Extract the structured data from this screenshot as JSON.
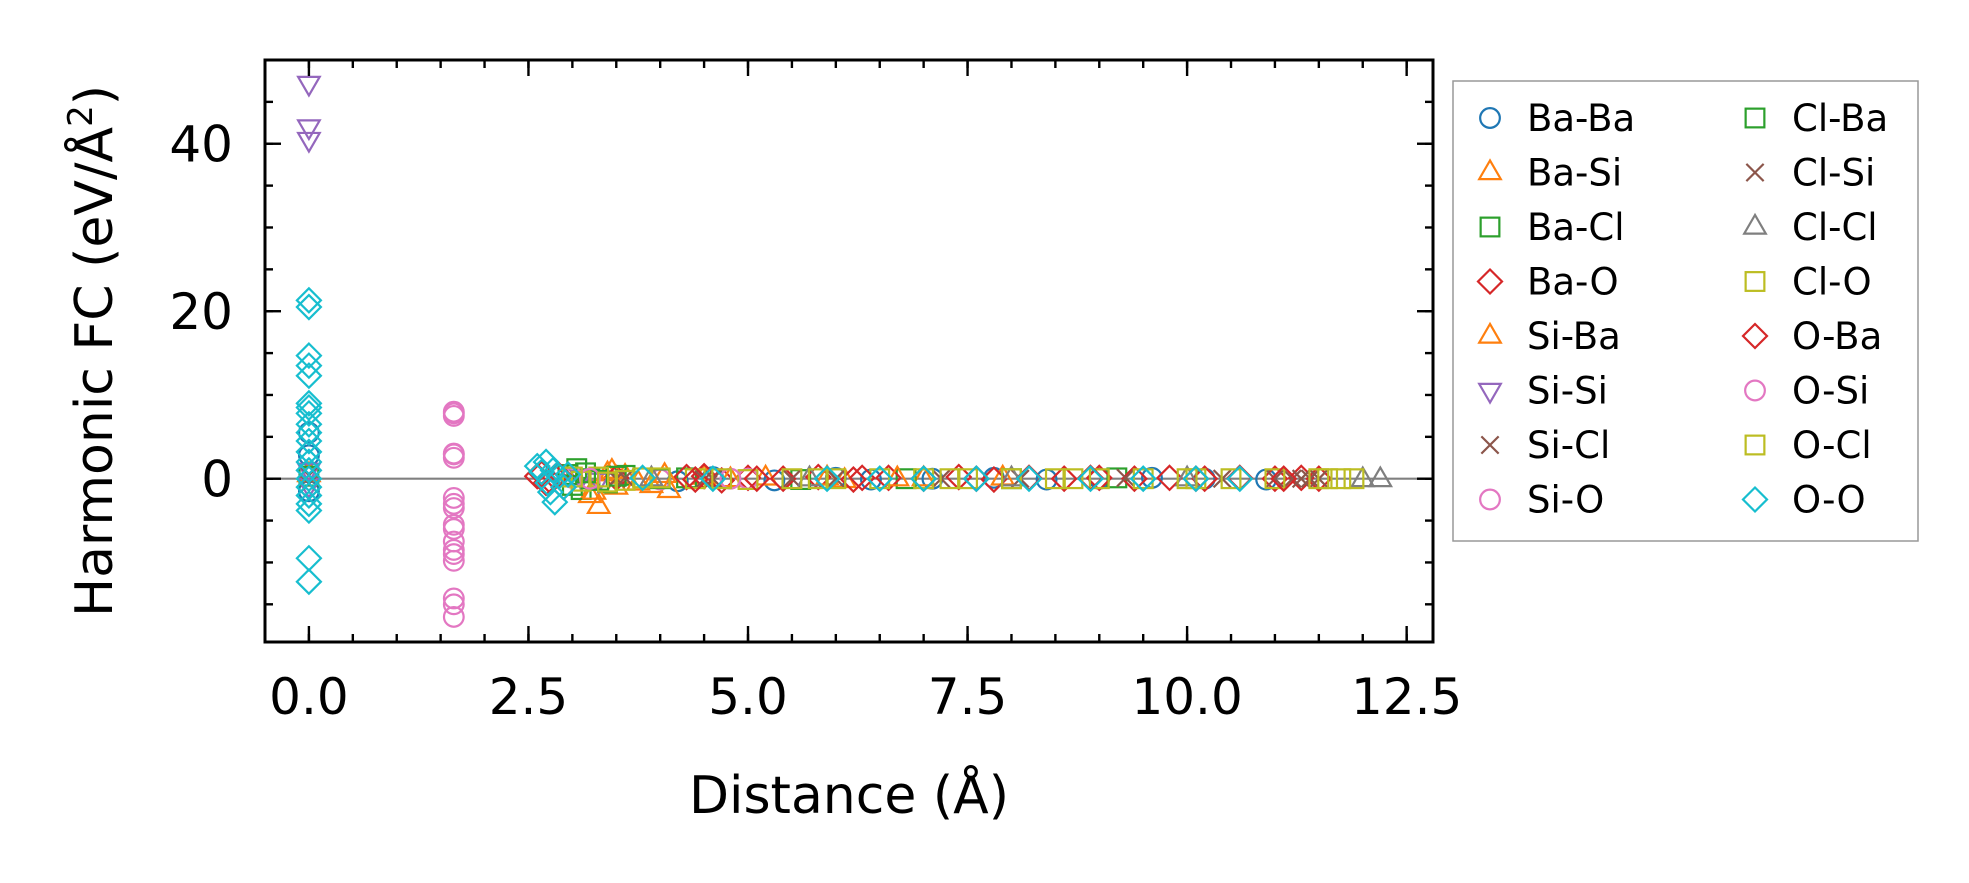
{
  "chart_data": {
    "type": "scatter",
    "title": "",
    "xlabel": "Distance (Å)",
    "ylabel_main": "Harmonic FC (eV/Å",
    "ylabel_sup": "2",
    "ylabel_end": ")",
    "xlim": [
      -0.5,
      12.8
    ],
    "ylim": [
      -19.5,
      50
    ],
    "x_ticks": [
      {
        "value": 0.0,
        "label": "0.0"
      },
      {
        "value": 2.5,
        "label": "2.5"
      },
      {
        "value": 5.0,
        "label": "5.0"
      },
      {
        "value": 7.5,
        "label": "7.5"
      },
      {
        "value": 10.0,
        "label": "10.0"
      },
      {
        "value": 12.5,
        "label": "12.5"
      }
    ],
    "y_ticks": [
      {
        "value": 0,
        "label": "0"
      },
      {
        "value": 20,
        "label": "20"
      },
      {
        "value": 40,
        "label": "40"
      }
    ],
    "zero_line": 0,
    "grid": false,
    "legend_position": "outside-right",
    "series": [
      {
        "name": "Ba-Ba",
        "marker": "circle",
        "color": "#1f77b4",
        "points": [
          [
            0,
            5.5
          ],
          [
            0,
            2.8
          ],
          [
            0,
            -1.5
          ],
          [
            4.2,
            -0.3
          ],
          [
            4.6,
            0.2
          ],
          [
            5.3,
            -0.2
          ],
          [
            6.0,
            0.1
          ],
          [
            6.4,
            -0.1
          ],
          [
            7.1,
            0.0
          ],
          [
            7.8,
            0.1
          ],
          [
            8.4,
            -0.1
          ],
          [
            9.0,
            0.0
          ],
          [
            9.6,
            0.1
          ],
          [
            10.2,
            0.0
          ],
          [
            10.9,
            -0.1
          ]
        ]
      },
      {
        "name": "Ba-Si",
        "marker": "triangle-up",
        "color": "#ff7f0e",
        "points": [
          [
            0,
            0.5
          ],
          [
            3.2,
            -2.0
          ],
          [
            3.3,
            -3.3
          ],
          [
            3.4,
            0.6
          ],
          [
            3.5,
            -1.0
          ],
          [
            3.6,
            0.3
          ],
          [
            3.9,
            -0.8
          ],
          [
            4.1,
            -1.4
          ],
          [
            4.5,
            0.2
          ],
          [
            5.2,
            0.1
          ],
          [
            6.1,
            -0.2
          ],
          [
            7.0,
            0.0
          ],
          [
            7.9,
            0.1
          ]
        ]
      },
      {
        "name": "Ba-Cl",
        "marker": "square",
        "color": "#2ca02c",
        "points": [
          [
            0,
            0.3
          ],
          [
            2.95,
            0.5
          ],
          [
            3.05,
            1.2
          ],
          [
            3.1,
            -1.3
          ],
          [
            3.2,
            0.0
          ],
          [
            3.4,
            -0.5
          ],
          [
            3.6,
            0.4
          ],
          [
            4.3,
            0.1
          ],
          [
            5.6,
            -0.1
          ],
          [
            6.8,
            0.0
          ],
          [
            8.0,
            0.0
          ],
          [
            9.2,
            0.1
          ]
        ]
      },
      {
        "name": "Ba-O",
        "marker": "diamond",
        "color": "#d62728",
        "points": [
          [
            2.6,
            0.3
          ],
          [
            2.7,
            -0.5
          ],
          [
            2.8,
            0.2
          ],
          [
            2.9,
            -1.0
          ],
          [
            3.5,
            0.1
          ],
          [
            4.3,
            0.2
          ],
          [
            4.5,
            0.3
          ],
          [
            4.7,
            -0.2
          ],
          [
            5.0,
            0.1
          ],
          [
            5.4,
            0.0
          ],
          [
            5.8,
            0.2
          ],
          [
            6.2,
            -0.1
          ],
          [
            6.6,
            0.1
          ],
          [
            7.0,
            0.0
          ],
          [
            7.4,
            0.2
          ],
          [
            7.8,
            -0.1
          ],
          [
            8.2,
            0.1
          ],
          [
            8.6,
            0.0
          ],
          [
            9.0,
            0.1
          ],
          [
            9.4,
            0.0
          ],
          [
            9.8,
            0.1
          ],
          [
            10.2,
            0.0
          ],
          [
            10.6,
            0.1
          ],
          [
            11.0,
            0.0
          ],
          [
            11.3,
            0.1
          ],
          [
            11.5,
            0.0
          ]
        ]
      },
      {
        "name": "Si-Ba",
        "marker": "triangle-up",
        "color": "#ff7f0e",
        "points": [
          [
            3.25,
            -1.6
          ],
          [
            3.45,
            0.9
          ],
          [
            3.75,
            -0.5
          ],
          [
            4.05,
            0.4
          ],
          [
            4.8,
            -0.1
          ],
          [
            5.9,
            0.1
          ],
          [
            6.7,
            0.0
          ]
        ]
      },
      {
        "name": "Si-Si",
        "marker": "triangle-down",
        "color": "#9467bd",
        "points": [
          [
            0,
            47.2
          ],
          [
            0,
            42.0
          ],
          [
            0,
            40.5
          ],
          [
            0,
            1.0
          ],
          [
            0,
            -0.8
          ],
          [
            3.1,
            0.2
          ],
          [
            3.3,
            -0.2
          ]
        ]
      },
      {
        "name": "Si-Cl",
        "marker": "x",
        "color": "#8c564b",
        "points": [
          [
            0,
            0.4
          ],
          [
            0,
            -0.6
          ],
          [
            3.5,
            0.0
          ],
          [
            4.5,
            -0.1
          ],
          [
            5.5,
            0.0
          ],
          [
            7.2,
            0.0
          ],
          [
            9.3,
            0.1
          ],
          [
            11.0,
            0.0
          ],
          [
            11.3,
            0.0
          ],
          [
            11.5,
            0.0
          ]
        ]
      },
      {
        "name": "Si-O",
        "marker": "circle",
        "color": "#e377c2",
        "points": [
          [
            1.65,
            7.8
          ],
          [
            1.65,
            7.5
          ],
          [
            1.65,
            3.0
          ],
          [
            1.65,
            2.5
          ],
          [
            1.65,
            -2.3
          ],
          [
            1.65,
            -3.5
          ],
          [
            1.65,
            -5.5
          ],
          [
            1.65,
            -7.5
          ],
          [
            1.65,
            -8.5
          ],
          [
            1.65,
            -9.8
          ],
          [
            1.65,
            -14.3
          ],
          [
            1.65,
            -16.5
          ],
          [
            3.0,
            0.1
          ],
          [
            4.0,
            -0.1
          ],
          [
            5.0,
            0.0
          ]
        ]
      },
      {
        "name": "Cl-Ba",
        "marker": "square",
        "color": "#2ca02c",
        "points": [
          [
            3.0,
            -0.8
          ],
          [
            3.15,
            0.7
          ],
          [
            3.3,
            -0.2
          ],
          [
            3.5,
            0.3
          ],
          [
            4.0,
            0.0
          ]
        ]
      },
      {
        "name": "Cl-Si",
        "marker": "x",
        "color": "#8c564b",
        "points": [
          [
            3.6,
            0.1
          ],
          [
            4.6,
            0.0
          ],
          [
            6.0,
            0.0
          ],
          [
            8.1,
            0.0
          ],
          [
            10.4,
            0.0
          ],
          [
            11.2,
            0.0
          ],
          [
            11.4,
            0.0
          ]
        ]
      },
      {
        "name": "Cl-Cl",
        "marker": "triangle-up",
        "color": "#7f7f7f",
        "points": [
          [
            3.9,
            0.0
          ],
          [
            5.7,
            0.0
          ],
          [
            8.0,
            0.0
          ],
          [
            10.0,
            0.0
          ],
          [
            12.0,
            -0.1
          ],
          [
            12.2,
            -0.1
          ]
        ]
      },
      {
        "name": "Cl-O",
        "marker": "square",
        "color": "#bcbd22",
        "points": [
          [
            3.1,
            -0.3
          ],
          [
            3.3,
            0.2
          ],
          [
            3.6,
            -0.2
          ],
          [
            4.0,
            0.1
          ],
          [
            4.4,
            0.0
          ],
          [
            5.0,
            -0.1
          ],
          [
            5.5,
            0.0
          ],
          [
            6.0,
            0.0
          ],
          [
            6.5,
            0.0
          ],
          [
            7.0,
            0.0
          ],
          [
            7.5,
            0.0
          ],
          [
            8.0,
            0.0
          ],
          [
            8.5,
            0.0
          ],
          [
            9.0,
            0.0
          ],
          [
            9.5,
            0.0
          ],
          [
            10.0,
            0.0
          ],
          [
            10.5,
            0.0
          ],
          [
            11.0,
            0.0
          ],
          [
            11.5,
            0.0
          ],
          [
            11.75,
            0.0
          ],
          [
            11.9,
            0.0
          ]
        ]
      },
      {
        "name": "O-Ba",
        "marker": "diamond",
        "color": "#d62728",
        "points": [
          [
            2.65,
            0.6
          ],
          [
            2.75,
            -0.3
          ],
          [
            2.85,
            0.4
          ],
          [
            4.4,
            -0.1
          ],
          [
            5.1,
            0.0
          ],
          [
            6.3,
            0.1
          ],
          [
            7.6,
            0.0
          ],
          [
            8.9,
            0.1
          ],
          [
            10.1,
            0.0
          ],
          [
            11.1,
            0.0
          ]
        ]
      },
      {
        "name": "O-Si",
        "marker": "circle",
        "color": "#e377c2",
        "points": [
          [
            1.65,
            8.0
          ],
          [
            1.65,
            2.9
          ],
          [
            1.65,
            -3.0
          ],
          [
            1.65,
            -6.0
          ],
          [
            1.65,
            -9.0
          ],
          [
            1.65,
            -15.0
          ],
          [
            3.2,
            0.0
          ],
          [
            4.8,
            0.0
          ]
        ]
      },
      {
        "name": "O-Cl",
        "marker": "square",
        "color": "#bcbd22",
        "points": [
          [
            3.0,
            0.2
          ],
          [
            3.4,
            -0.4
          ],
          [
            3.8,
            0.1
          ],
          [
            4.7,
            0.0
          ],
          [
            5.8,
            0.0
          ],
          [
            7.3,
            0.0
          ],
          [
            8.7,
            0.0
          ],
          [
            10.1,
            0.0
          ],
          [
            11.6,
            0.0
          ]
        ]
      },
      {
        "name": "O-O",
        "marker": "diamond",
        "color": "#17becf",
        "points": [
          [
            0,
            21.3
          ],
          [
            0,
            20.5
          ],
          [
            0,
            14.7
          ],
          [
            0,
            13.5
          ],
          [
            0,
            12.3
          ],
          [
            0,
            9.0
          ],
          [
            0,
            8.5
          ],
          [
            0,
            7.8
          ],
          [
            0,
            6.5
          ],
          [
            0,
            5.5
          ],
          [
            0,
            4.5
          ],
          [
            0,
            3.2
          ],
          [
            0,
            2.0
          ],
          [
            0,
            1.0
          ],
          [
            0,
            0.0
          ],
          [
            0,
            -1.0
          ],
          [
            0,
            -2.0
          ],
          [
            0,
            -3.0
          ],
          [
            0,
            -3.8
          ],
          [
            0,
            -9.5
          ],
          [
            0,
            -12.3
          ],
          [
            2.6,
            1.5
          ],
          [
            2.65,
            0.8
          ],
          [
            2.7,
            2.0
          ],
          [
            2.72,
            -0.5
          ],
          [
            2.75,
            -1.6
          ],
          [
            2.78,
            1.0
          ],
          [
            2.8,
            -2.8
          ],
          [
            2.85,
            0.3
          ],
          [
            2.9,
            -1.0
          ],
          [
            2.95,
            0.5
          ],
          [
            3.8,
            0.1
          ],
          [
            4.6,
            0.0
          ],
          [
            5.9,
            0.0
          ],
          [
            6.5,
            0.0
          ],
          [
            7.0,
            0.0
          ],
          [
            7.6,
            0.0
          ],
          [
            8.2,
            0.0
          ],
          [
            8.9,
            0.0
          ],
          [
            9.5,
            0.0
          ],
          [
            10.1,
            0.0
          ],
          [
            10.6,
            0.0
          ]
        ]
      }
    ]
  }
}
